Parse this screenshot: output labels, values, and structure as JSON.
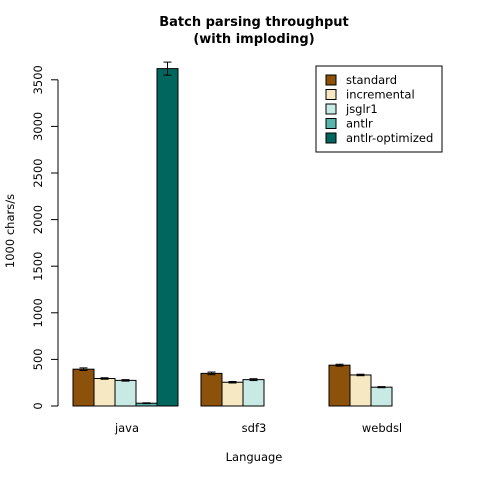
{
  "chart_data": {
    "type": "bar",
    "title": "Batch parsing throughput",
    "subtitle": "(with imploding)",
    "xlabel": "Language",
    "ylabel": "1000 chars/s",
    "ylim": [
      0,
      3600
    ],
    "yticks": [
      0,
      500,
      1000,
      1500,
      2000,
      2500,
      3000,
      3500
    ],
    "grid": false,
    "legend_position": "top-right",
    "categories": [
      "java",
      "sdf3",
      "webdsl"
    ],
    "series": [
      {
        "name": "standard",
        "color": "#8c510a",
        "values": [
          395,
          350,
          438
        ],
        "errors": [
          14,
          14,
          10
        ]
      },
      {
        "name": "incremental",
        "color": "#f6e8c3",
        "values": [
          295,
          255,
          333
        ],
        "errors": [
          8,
          8,
          8
        ]
      },
      {
        "name": "jsglr1",
        "color": "#c7eae5",
        "values": [
          275,
          283,
          202
        ],
        "errors": [
          8,
          10,
          6
        ]
      },
      {
        "name": "antlr",
        "color": "#5ab4ac",
        "values": [
          30,
          null,
          null
        ],
        "errors": [
          4,
          null,
          null
        ]
      },
      {
        "name": "antlr-optimized",
        "color": "#01665e",
        "values": [
          3620,
          null,
          null
        ],
        "errors": [
          70,
          null,
          null
        ]
      }
    ]
  }
}
